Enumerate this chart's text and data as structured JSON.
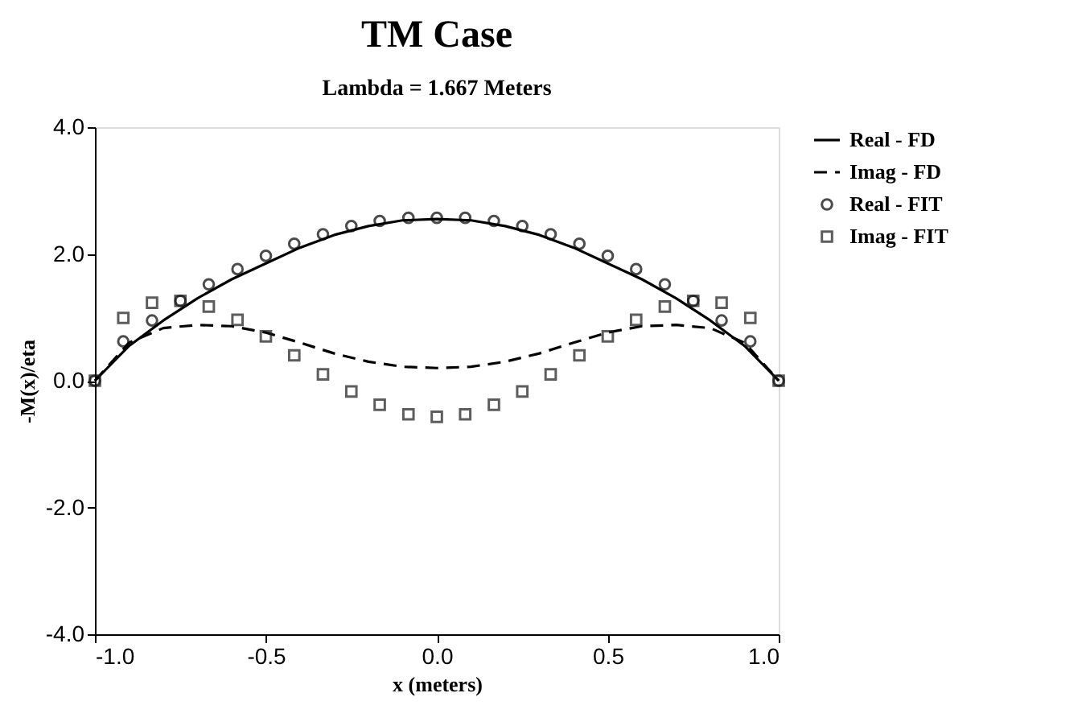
{
  "chart_data": {
    "type": "line",
    "title": "TM Case",
    "subtitle": "Lambda = 1.667 Meters",
    "xlabel": "x (meters)",
    "ylabel": "-M(x)/eta",
    "xlim": [
      -1,
      1
    ],
    "ylim": [
      -4,
      4
    ],
    "xticks": [
      {
        "value": -1,
        "label": "-1.0"
      },
      {
        "value": -0.5,
        "label": "-0.5"
      },
      {
        "value": 0,
        "label": "0.0"
      },
      {
        "value": 0.5,
        "label": "0.5"
      },
      {
        "value": 1,
        "label": "1.0"
      }
    ],
    "yticks": [
      {
        "value": -4,
        "label": "-4.0"
      },
      {
        "value": -2,
        "label": "-2.0"
      },
      {
        "value": 0,
        "label": "0.0"
      },
      {
        "value": 2,
        "label": "2.0"
      },
      {
        "value": 4,
        "label": "4.0"
      }
    ],
    "grid": false,
    "legend": "right",
    "series": [
      {
        "name": "Real - FD",
        "line_style": "solid",
        "marker": "none",
        "color": "#000000",
        "x": [
          -1,
          -0.9,
          -0.8,
          -0.7,
          -0.6,
          -0.5,
          -0.4,
          -0.3,
          -0.2,
          -0.1,
          0,
          0.1,
          0.2,
          0.3,
          0.4,
          0.5,
          0.6,
          0.7,
          0.8,
          0.9,
          1
        ],
        "values": [
          0,
          0.55,
          0.95,
          1.3,
          1.6,
          1.85,
          2.1,
          2.3,
          2.44,
          2.53,
          2.55,
          2.53,
          2.44,
          2.3,
          2.1,
          1.85,
          1.6,
          1.3,
          0.95,
          0.55,
          0
        ]
      },
      {
        "name": "Imag - FD",
        "line_style": "dashed",
        "marker": "none",
        "color": "#000000",
        "x": [
          -1,
          -0.9,
          -0.8,
          -0.7,
          -0.6,
          -0.5,
          -0.4,
          -0.3,
          -0.2,
          -0.1,
          0,
          0.1,
          0.2,
          0.3,
          0.4,
          0.5,
          0.6,
          0.7,
          0.8,
          0.9,
          1
        ],
        "values": [
          0,
          0.6,
          0.83,
          0.88,
          0.86,
          0.76,
          0.6,
          0.43,
          0.3,
          0.22,
          0.2,
          0.22,
          0.3,
          0.43,
          0.6,
          0.76,
          0.86,
          0.88,
          0.83,
          0.6,
          0
        ]
      },
      {
        "name": "Real - FIT",
        "type": "scatter",
        "marker": "circle",
        "color": "#000000",
        "x": [
          -1,
          -0.917,
          -0.833,
          -0.75,
          -0.667,
          -0.583,
          -0.5,
          -0.417,
          -0.333,
          -0.25,
          -0.167,
          -0.083,
          0,
          0.083,
          0.167,
          0.25,
          0.333,
          0.417,
          0.5,
          0.583,
          0.667,
          0.75,
          0.833,
          0.917,
          1
        ],
        "values": [
          0,
          0.62,
          0.95,
          1.26,
          1.52,
          1.76,
          1.97,
          2.16,
          2.31,
          2.44,
          2.52,
          2.57,
          2.57,
          2.57,
          2.52,
          2.44,
          2.31,
          2.16,
          1.97,
          1.76,
          1.52,
          1.26,
          0.95,
          0.62,
          0
        ]
      },
      {
        "name": "Imag - FIT",
        "type": "scatter",
        "marker": "square",
        "color": "#1a1a1a",
        "x": [
          -1,
          -0.917,
          -0.833,
          -0.75,
          -0.667,
          -0.583,
          -0.5,
          -0.417,
          -0.333,
          -0.25,
          -0.167,
          -0.083,
          0,
          0.083,
          0.167,
          0.25,
          0.333,
          0.417,
          0.5,
          0.583,
          0.667,
          0.75,
          0.833,
          0.917,
          1
        ],
        "values": [
          0,
          0.99,
          1.23,
          1.26,
          1.17,
          0.96,
          0.7,
          0.4,
          0.1,
          -0.17,
          -0.38,
          -0.53,
          -0.57,
          -0.53,
          -0.38,
          -0.17,
          0.1,
          0.4,
          0.7,
          0.96,
          1.17,
          1.26,
          1.23,
          0.99,
          0
        ]
      }
    ]
  }
}
